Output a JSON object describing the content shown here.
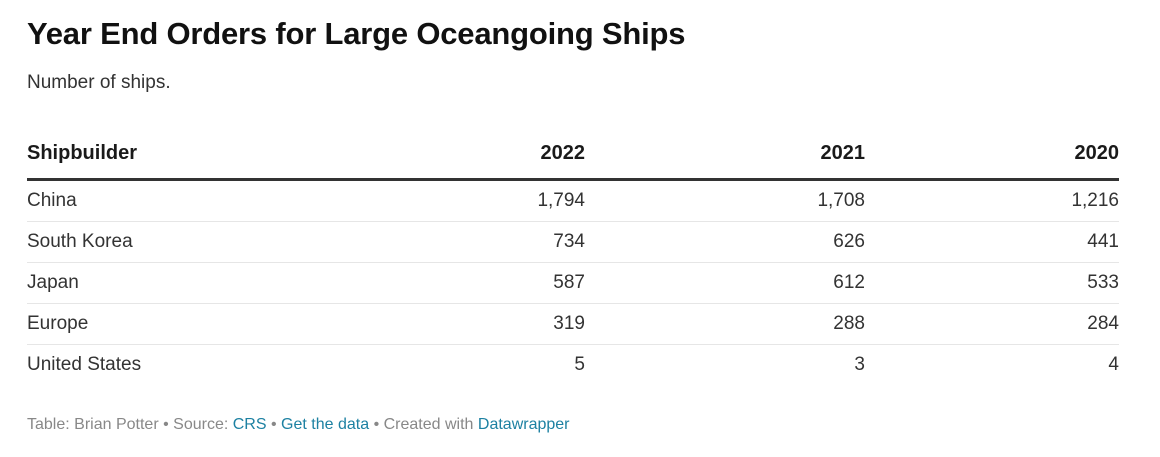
{
  "title": "Year End Orders for Large Oceangoing Ships",
  "subtitle": "Number of ships.",
  "chart_data": {
    "type": "table",
    "title": "Year End Orders for Large Oceangoing Ships",
    "subtitle": "Number of ships.",
    "columns": [
      "Shipbuilder",
      "2022",
      "2021",
      "2020"
    ],
    "rows": [
      [
        "China",
        "1,794",
        "1,708",
        "1,216"
      ],
      [
        "South Korea",
        "734",
        "626",
        "441"
      ],
      [
        "Japan",
        "587",
        "612",
        "533"
      ],
      [
        "Europe",
        "319",
        "288",
        "284"
      ],
      [
        "United States",
        "5",
        "3",
        "4"
      ]
    ]
  },
  "footer": {
    "table_label": "Table:",
    "author": "Brian Potter",
    "bullet": "•",
    "source_label": "Source:",
    "source_link": "CRS",
    "data_link": "Get the data",
    "created_label": "Created with",
    "tool_link": "Datawrapper"
  }
}
